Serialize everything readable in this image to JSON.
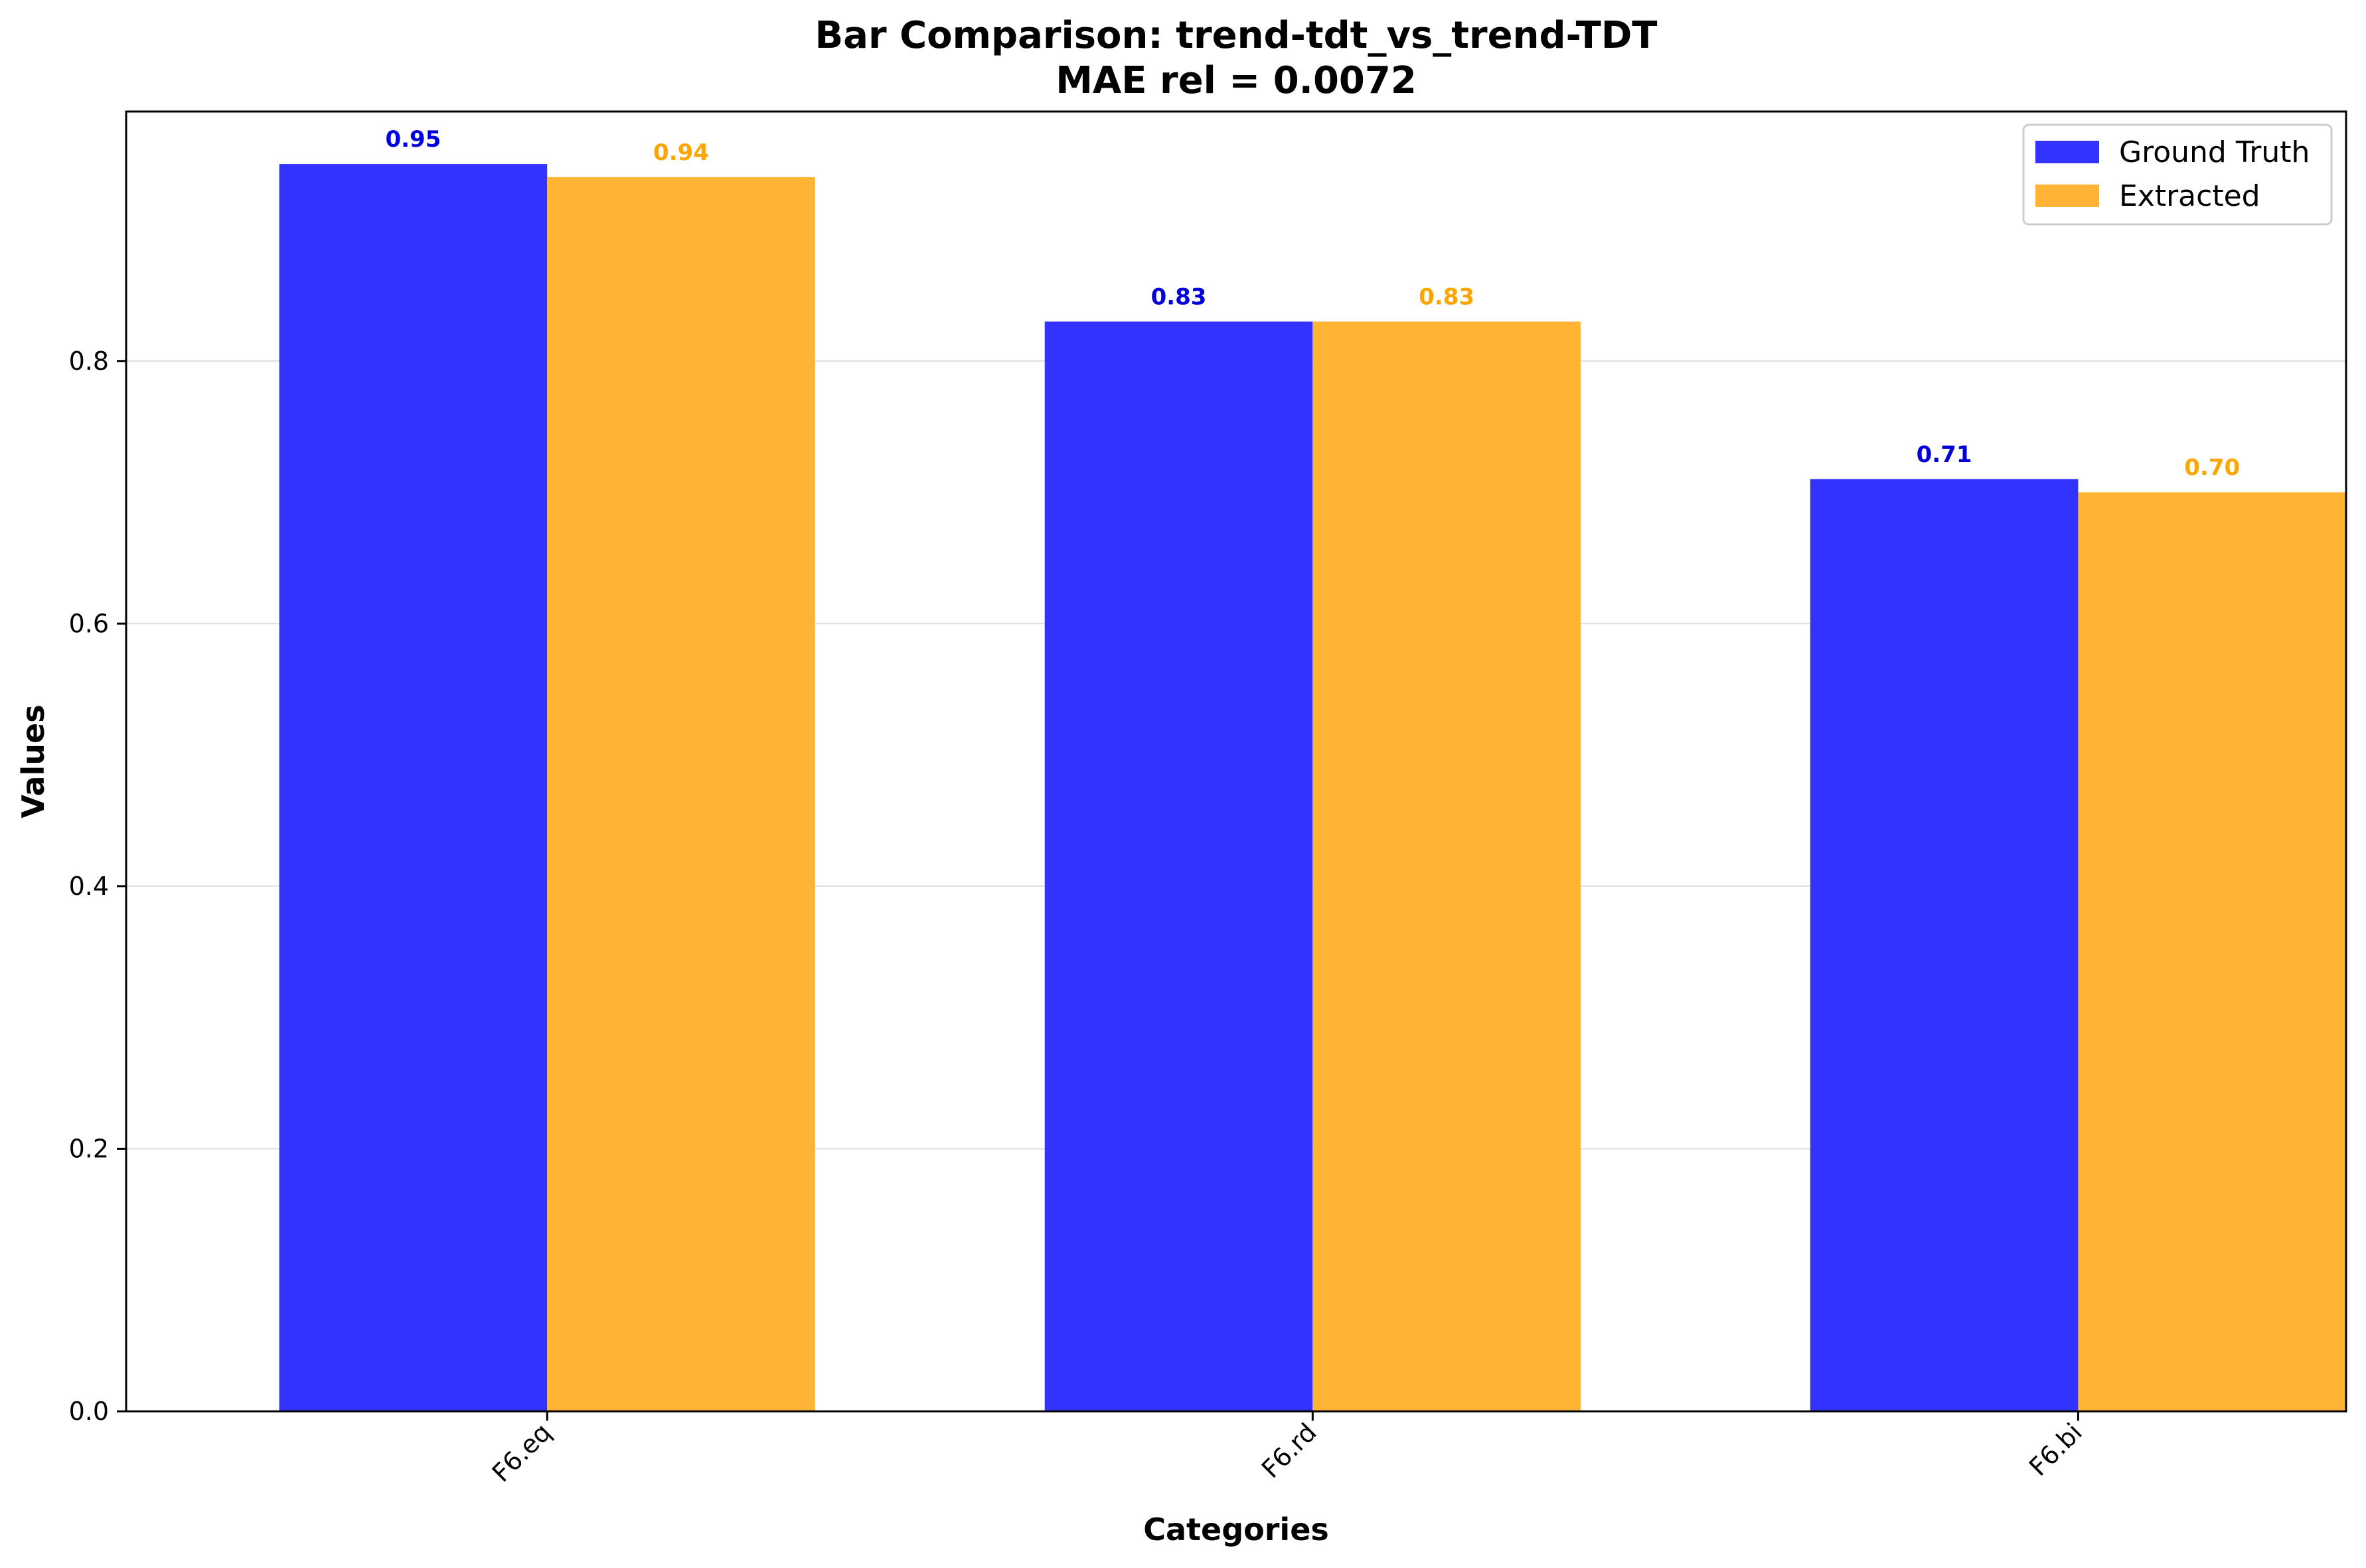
{
  "chart_data": {
    "type": "bar",
    "title": "Bar Comparison: trend-tdt_vs_trend-TDT",
    "subtitle": "MAE rel = 0.0072",
    "xlabel": "Categories",
    "ylabel": "Values",
    "categories": [
      "F6.eq",
      "F6.rd",
      "F6.bi"
    ],
    "series": [
      {
        "name": "Ground Truth",
        "values": [
          0.95,
          0.83,
          0.71
        ],
        "labels": [
          "0.95",
          "0.83",
          "0.71"
        ],
        "color": "#3333ff",
        "label_color": "#0000dd"
      },
      {
        "name": "Extracted",
        "values": [
          0.94,
          0.83,
          0.7
        ],
        "labels": [
          "0.94",
          "0.83",
          "0.70"
        ],
        "color": "#ffb533",
        "label_color": "#ffa500"
      }
    ],
    "ylim": [
      0,
      0.99
    ],
    "yticks": [
      0.0,
      0.2,
      0.4,
      0.6,
      0.8
    ],
    "ytick_labels": [
      "0.0",
      "0.2",
      "0.4",
      "0.6",
      "0.8"
    ],
    "grid": "horizontal",
    "legend_position": "top-right"
  }
}
